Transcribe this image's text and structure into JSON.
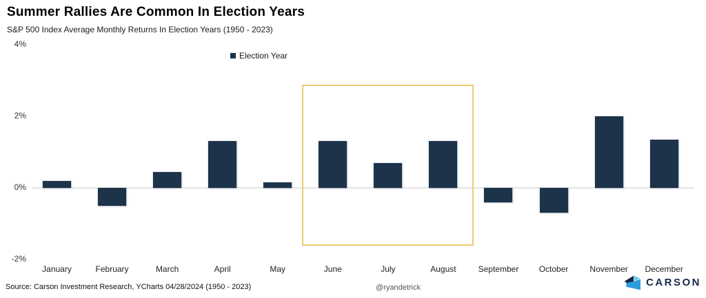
{
  "chart": {
    "title": "Summer Rallies Are Common In Election Years",
    "subtitle": "S&P 500 Index Average Monthly Returns In Election Years (1950 - 2023)",
    "legend_label": "Election Year"
  },
  "chart_data": {
    "type": "bar",
    "title": "Summer Rallies Are Common In Election Years",
    "subtitle": "S&P 500 Index Average Monthly Returns In Election Years (1950 - 2023)",
    "series_name": "Election Year",
    "categories": [
      "January",
      "February",
      "March",
      "April",
      "May",
      "June",
      "July",
      "August",
      "September",
      "October",
      "November",
      "December"
    ],
    "values": [
      0.2,
      -0.5,
      0.45,
      1.3,
      0.15,
      1.3,
      0.7,
      1.3,
      -0.4,
      -0.7,
      2.0,
      1.35
    ],
    "xlabel": "",
    "ylabel": "",
    "y_ticks": [
      "4%",
      "2%",
      "0%",
      "-2%"
    ],
    "y_tick_values": [
      4,
      2,
      0,
      -2
    ],
    "ylim": [
      -2.5,
      4.2
    ],
    "grid": "zero-line-only",
    "legend_position": "top-center",
    "bar_color": "#1C3349",
    "highlight": {
      "months": [
        "June",
        "July",
        "August"
      ],
      "box_color": "#ECC873"
    }
  },
  "footer": {
    "source": "Source: Carson Investment Research, YCharts 04/28/2024 (1950 - 2023)",
    "credit": "@ryandetrick",
    "logo_text": "CARSON"
  },
  "colors": {
    "bar": "#1C3349",
    "highlight_box": "#ECC873",
    "zero_line": "#E3E3E3",
    "logo_navy": "#15294D",
    "logo_blue": "#2D9CDB",
    "logo_cyan": "#56CCF2"
  }
}
